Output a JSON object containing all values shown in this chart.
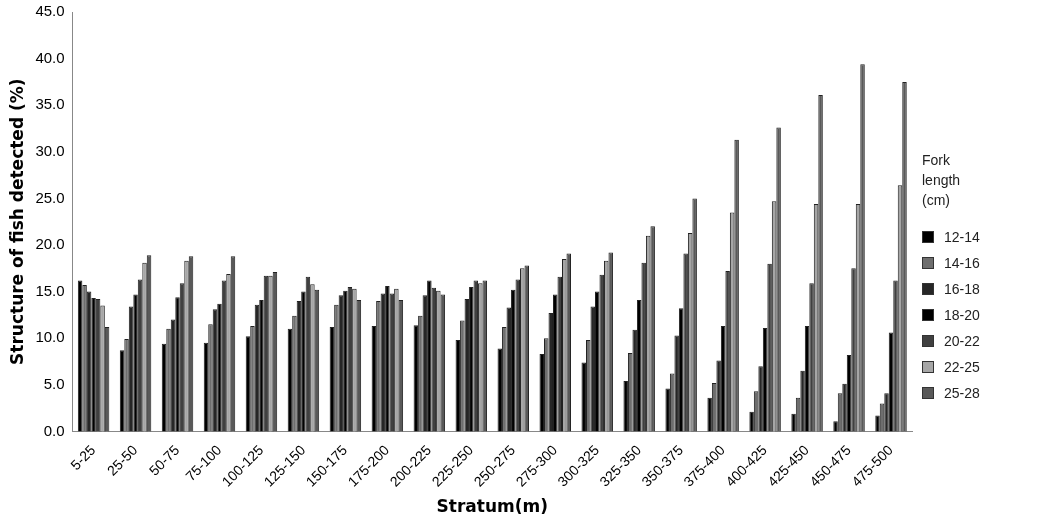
{
  "chart_data": {
    "type": "bar",
    "xlabel": "Stratum(m)",
    "ylabel": "Structure of fish detected (%)",
    "legend_title": "Fork length (cm)",
    "legend": "right",
    "grid": false,
    "categories": [
      "5-25",
      "25-50",
      "50-75",
      "75-100",
      "100-125",
      "125-150",
      "150-175",
      "175-200",
      "200-225",
      "225-250",
      "250-275",
      "275-300",
      "300-325",
      "325-350",
      "350-375",
      "375-400",
      "400-425",
      "425-450",
      "450-475",
      "475-500"
    ],
    "ylim": [
      0,
      45
    ],
    "yticks": [
      {
        "value": 0,
        "label": "0.0"
      },
      {
        "value": 5,
        "label": "5.0"
      },
      {
        "value": 10,
        "label": "10.0"
      },
      {
        "value": 15,
        "label": "15.0"
      },
      {
        "value": 20,
        "label": "20.0"
      },
      {
        "value": 25,
        "label": "25.0"
      },
      {
        "value": 30,
        "label": "30.0"
      },
      {
        "value": 35,
        "label": "35.0"
      },
      {
        "value": 40,
        "label": "40.0"
      },
      {
        "value": 45,
        "label": "45.0"
      }
    ],
    "series": [
      {
        "name": "12-14",
        "color": "#000000",
        "values": [
          16.2,
          8.7,
          9.4,
          9.5,
          10.2,
          11.0,
          11.2,
          11.3,
          11.4,
          9.8,
          8.9,
          8.3,
          7.4,
          5.4,
          4.6,
          3.6,
          2.1,
          1.9,
          1.1,
          1.7
        ]
      },
      {
        "name": "14-16",
        "color": "#6e6e6e",
        "values": [
          15.7,
          9.9,
          11.0,
          11.5,
          11.3,
          12.4,
          13.6,
          14.0,
          12.4,
          11.9,
          11.2,
          10.0,
          9.8,
          8.4,
          6.2,
          5.2,
          4.3,
          3.6,
          4.1,
          3.0
        ]
      },
      {
        "name": "16-18",
        "color": "#262626",
        "values": [
          15.0,
          13.4,
          12.0,
          13.1,
          13.6,
          14.0,
          14.6,
          14.8,
          14.6,
          14.2,
          13.3,
          12.7,
          13.4,
          10.9,
          10.3,
          7.6,
          7.0,
          6.5,
          5.1,
          4.1
        ]
      },
      {
        "name": "18-20",
        "color": "#000000",
        "values": [
          14.3,
          14.7,
          14.4,
          13.7,
          14.1,
          15.0,
          15.1,
          15.6,
          16.2,
          15.5,
          15.2,
          14.7,
          15.0,
          14.1,
          13.2,
          11.3,
          11.1,
          11.3,
          8.2,
          10.6
        ]
      },
      {
        "name": "20-22",
        "color": "#404040",
        "values": [
          14.2,
          16.3,
          15.9,
          16.2,
          16.7,
          16.6,
          15.5,
          14.8,
          15.4,
          16.2,
          16.3,
          16.6,
          16.8,
          18.1,
          19.1,
          17.2,
          18.0,
          15.9,
          17.5,
          16.2
        ]
      },
      {
        "name": "22-25",
        "color": "#a6a6a6",
        "values": [
          13.5,
          18.1,
          18.3,
          16.9,
          16.7,
          15.8,
          15.3,
          15.3,
          15.1,
          15.9,
          17.5,
          18.5,
          18.3,
          21.0,
          21.3,
          23.5,
          24.7,
          24.4,
          24.4,
          26.4
        ]
      },
      {
        "name": "25-28",
        "color": "#595959",
        "values": [
          11.2,
          18.9,
          18.8,
          18.8,
          17.1,
          15.2,
          14.1,
          14.1,
          14.7,
          16.2,
          17.8,
          19.1,
          19.2,
          22.0,
          25.0,
          31.3,
          32.6,
          36.1,
          39.4,
          37.5
        ]
      }
    ]
  }
}
